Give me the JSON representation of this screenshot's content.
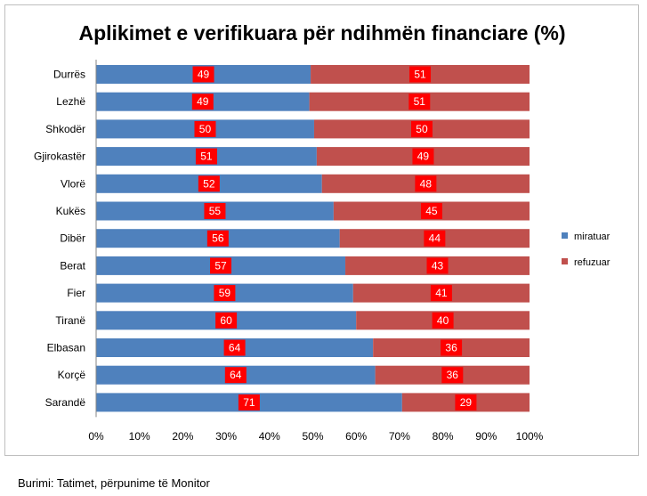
{
  "chart_data": {
    "type": "bar",
    "orientation": "horizontal",
    "stacked": "percent",
    "title": "Aplikimet e verifikuara për ndihmën financiare (%)",
    "categories": [
      "Durrës",
      "Lezhë",
      "Shkodër",
      "Gjirokastër",
      "Vlorë",
      "Kukës",
      "Dibër",
      "Berat",
      "Fier",
      "Tiranë",
      "Elbasan",
      "Korçë",
      "Sarandë"
    ],
    "series": [
      {
        "name": "miratuar",
        "color": "#4f81bd",
        "values": [
          49,
          49,
          50,
          51,
          52,
          55,
          56,
          57,
          59,
          60,
          64,
          64,
          71
        ],
        "plot_values": [
          49.5,
          49.2,
          50.3,
          50.9,
          52.1,
          54.8,
          56.2,
          57.5,
          59.3,
          60.0,
          63.9,
          64.4,
          70.6
        ]
      },
      {
        "name": "refuzuar",
        "color": "#c0504d",
        "values": [
          51,
          51,
          50,
          49,
          48,
          45,
          44,
          43,
          41,
          40,
          36,
          36,
          29
        ]
      }
    ],
    "label_box_color": "#ff0000",
    "xaxis": {
      "ticks": [
        "0%",
        "10%",
        "20%",
        "30%",
        "40%",
        "50%",
        "60%",
        "70%",
        "80%",
        "90%",
        "100%"
      ],
      "range": [
        0,
        100
      ]
    },
    "grid": false,
    "legend": "right"
  },
  "source": "Burimi: Tatimet, përpunime të Monitor"
}
